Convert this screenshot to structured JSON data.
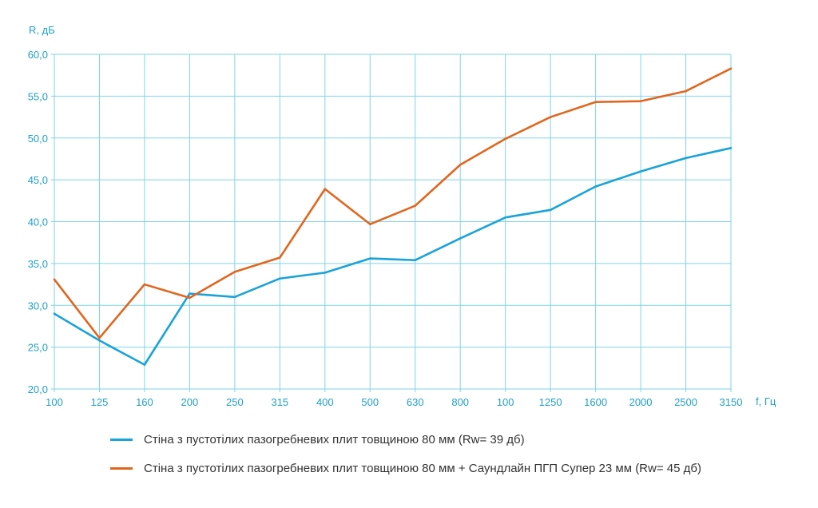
{
  "chart_data": {
    "type": "line",
    "title": "",
    "ylabel": "R, дБ",
    "xlabel": "f, Гц",
    "categories": [
      "100",
      "125",
      "160",
      "200",
      "250",
      "315",
      "400",
      "500",
      "630",
      "800",
      "100",
      "1250",
      "1600",
      "2000",
      "2500",
      "3150"
    ],
    "ylim": [
      20,
      60
    ],
    "yticks": [
      "20,0",
      "25,0",
      "30,0",
      "35,0",
      "40,0",
      "45,0",
      "50,0",
      "55,0",
      "60,0"
    ],
    "grid": true,
    "legend_placement": "bottom",
    "series": [
      {
        "name": "Стіна з пустотілих пазогребневих плит товщиною 80 мм (Rw= 39 дб)",
        "color": "#1aa3d9",
        "values": [
          29.0,
          25.8,
          22.9,
          31.4,
          31.0,
          33.2,
          33.9,
          35.6,
          35.4,
          38.0,
          40.5,
          41.4,
          44.2,
          46.0,
          47.6,
          48.8
        ]
      },
      {
        "name": "Стіна з пустотілих пазогребневих плит товщиною 80 мм + Саундлайн ПГП Супер 23 мм (Rw= 45 дб)",
        "color": "#e0661e",
        "values": [
          33.1,
          26.1,
          32.5,
          30.9,
          34.0,
          35.7,
          43.9,
          39.7,
          41.9,
          46.8,
          49.9,
          52.5,
          54.3,
          54.4,
          55.6,
          58.3
        ]
      }
    ],
    "grid_color": "#7fd3ea"
  }
}
